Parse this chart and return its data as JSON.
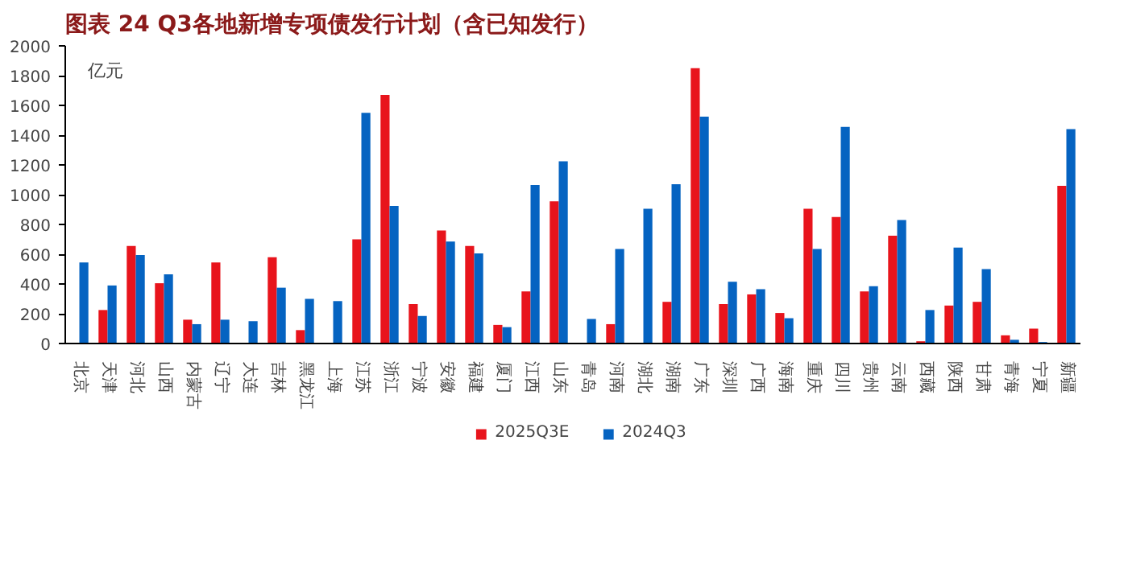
{
  "chart_data": {
    "type": "bar",
    "title": "图表 24   Q3各地新增专项债发行计划（含已知发行）",
    "ylabel": "亿元",
    "categories": [
      "北京",
      "天津",
      "河北",
      "山西",
      "内蒙古",
      "辽宁",
      "大连",
      "吉林",
      "黑龙江",
      "上海",
      "江苏",
      "浙江",
      "宁波",
      "安徽",
      "福建",
      "厦门",
      "江西",
      "山东",
      "青岛",
      "河南",
      "湖北",
      "湖南",
      "广东",
      "深圳",
      "广西",
      "海南",
      "重庆",
      "四川",
      "贵州",
      "云南",
      "西藏",
      "陕西",
      "甘肃",
      "青海",
      "宁夏",
      "新疆"
    ],
    "series": [
      {
        "name": "2025Q3E",
        "color": "#e8141c",
        "values": [
          null,
          225,
          655,
          405,
          160,
          545,
          null,
          580,
          90,
          null,
          700,
          1670,
          265,
          760,
          655,
          125,
          350,
          955,
          null,
          130,
          null,
          280,
          1850,
          265,
          330,
          205,
          905,
          850,
          350,
          725,
          15,
          255,
          280,
          55,
          100,
          1060
        ]
      },
      {
        "name": "2024Q3",
        "color": "#0563c1",
        "values": [
          545,
          390,
          595,
          465,
          130,
          160,
          150,
          375,
          300,
          285,
          1550,
          925,
          185,
          685,
          605,
          110,
          1065,
          1225,
          165,
          635,
          905,
          1070,
          1525,
          415,
          365,
          170,
          635,
          1455,
          385,
          830,
          225,
          645,
          500,
          25,
          10,
          1440
        ]
      }
    ],
    "ylim": [
      0,
      2000
    ],
    "yticks": [
      0,
      200,
      400,
      600,
      800,
      1000,
      1200,
      1400,
      1600,
      1800,
      2000
    ],
    "grid": false,
    "legend": "bottom"
  }
}
